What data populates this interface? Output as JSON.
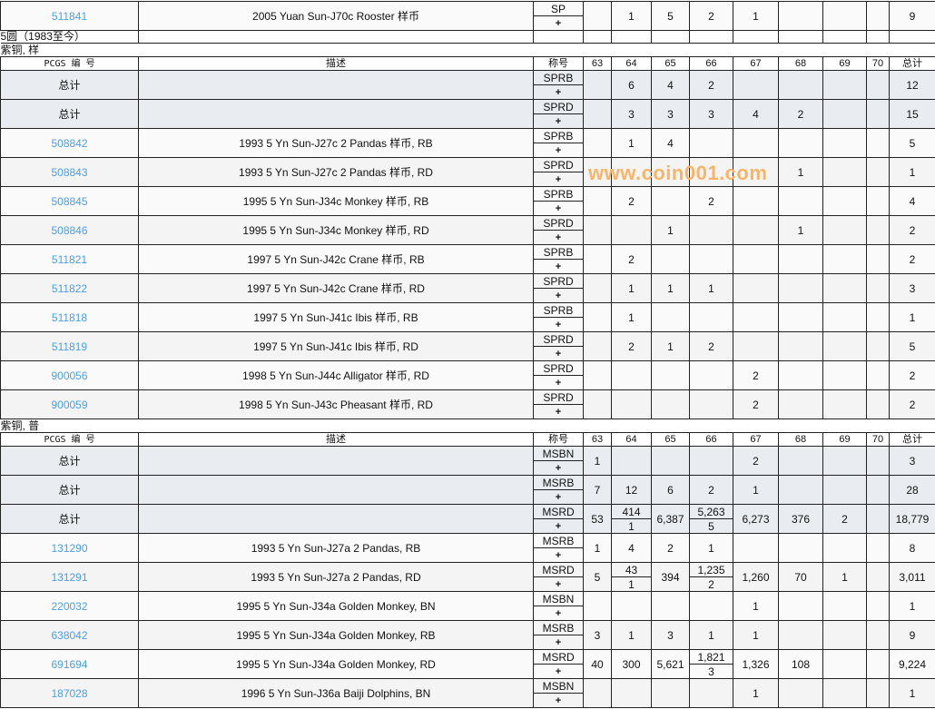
{
  "columns": {
    "pcgs": "PCGS 编 号",
    "desc": "描述",
    "grade": "称号",
    "g63": "63",
    "g64": "64",
    "g65": "65",
    "g66": "66",
    "g67": "67",
    "g68": "68",
    "g69": "69",
    "g70": "70",
    "total": "总计"
  },
  "plus": "+",
  "top_row": {
    "pcgs": "511841",
    "desc": "2005 Yuan Sun-J70c Rooster 样币",
    "grade": "SP",
    "cells": [
      "",
      "1",
      "5",
      "2",
      "1",
      "",
      "",
      ""
    ],
    "total": "9"
  },
  "category": "5圆（1983至今）",
  "sections": [
    {
      "title": "紫铜, 样",
      "rows": [
        {
          "type": "total",
          "pcgs": "总计",
          "desc": "",
          "grade": "SPRB",
          "cells": [
            "",
            "6",
            "4",
            "2",
            "",
            "",
            "",
            ""
          ],
          "total": "12"
        },
        {
          "type": "total",
          "pcgs": "总计",
          "desc": "",
          "grade": "SPRD",
          "cells": [
            "",
            "3",
            "3",
            "3",
            "4",
            "2",
            "",
            ""
          ],
          "total": "15"
        },
        {
          "pcgs": "508842",
          "desc": "1993 5 Yn Sun-J27c 2 Pandas 样币, RB",
          "grade": "SPRB",
          "cells": [
            "",
            "1",
            "4",
            "",
            "",
            "",
            "",
            ""
          ],
          "total": "5"
        },
        {
          "pcgs": "508843",
          "desc": "1993 5 Yn Sun-J27c 2 Pandas 样币, RD",
          "grade": "SPRD",
          "cells": [
            "",
            "",
            "",
            "",
            "",
            "1",
            "",
            ""
          ],
          "total": "1"
        },
        {
          "pcgs": "508845",
          "desc": "1995 5 Yn Sun-J34c Monkey 样币, RB",
          "grade": "SPRB",
          "cells": [
            "",
            "2",
            "",
            "2",
            "",
            "",
            "",
            ""
          ],
          "total": "4"
        },
        {
          "pcgs": "508846",
          "desc": "1995 5 Yn Sun-J34c Monkey 样币, RD",
          "grade": "SPRD",
          "cells": [
            "",
            "",
            "1",
            "",
            "",
            "1",
            "",
            ""
          ],
          "total": "2"
        },
        {
          "pcgs": "511821",
          "desc": "1997 5 Yn Sun-J42c Crane 样币, RB",
          "grade": "SPRB",
          "cells": [
            "",
            "2",
            "",
            "",
            "",
            "",
            "",
            ""
          ],
          "total": "2"
        },
        {
          "pcgs": "511822",
          "desc": "1997 5 Yn Sun-J42c Crane 样币, RD",
          "grade": "SPRD",
          "cells": [
            "",
            "1",
            "1",
            "1",
            "",
            "",
            "",
            ""
          ],
          "total": "3"
        },
        {
          "pcgs": "511818",
          "desc": "1997 5 Yn Sun-J41c Ibis 样币, RB",
          "grade": "SPRB",
          "cells": [
            "",
            "1",
            "",
            "",
            "",
            "",
            "",
            ""
          ],
          "total": "1"
        },
        {
          "pcgs": "511819",
          "desc": "1997 5 Yn Sun-J41c Ibis 样币, RD",
          "grade": "SPRD",
          "cells": [
            "",
            "2",
            "1",
            "2",
            "",
            "",
            "",
            ""
          ],
          "total": "5"
        },
        {
          "pcgs": "900056",
          "desc": "1998 5 Yn Sun-J44c Alligator 样币, RD",
          "grade": "SPRD",
          "cells": [
            "",
            "",
            "",
            "",
            "2",
            "",
            "",
            ""
          ],
          "total": "2"
        },
        {
          "pcgs": "900059",
          "desc": "1998 5 Yn Sun-J43c Pheasant 样币, RD",
          "grade": "SPRD",
          "cells": [
            "",
            "",
            "",
            "",
            "2",
            "",
            "",
            ""
          ],
          "total": "2"
        }
      ]
    },
    {
      "title": "紫铜, 普",
      "rows": [
        {
          "type": "total",
          "pcgs": "总计",
          "desc": "",
          "grade": "MSBN",
          "cells": [
            "1",
            "",
            "",
            "",
            "2",
            "",
            "",
            ""
          ],
          "total": "3"
        },
        {
          "type": "total",
          "pcgs": "总计",
          "desc": "",
          "grade": "MSRB",
          "cells": [
            "7",
            "12",
            "6",
            "2",
            "1",
            "",
            "",
            ""
          ],
          "total": "28"
        },
        {
          "type": "total",
          "pcgs": "总计",
          "desc": "",
          "grade": "MSRD",
          "cells": [
            "53",
            [
              "414",
              "1"
            ],
            "6,387",
            [
              "5,263",
              "5"
            ],
            "6,273",
            "376",
            "2",
            ""
          ],
          "total": "18,779"
        },
        {
          "pcgs": "131290",
          "desc": "1993 5 Yn Sun-J27a 2 Pandas, RB",
          "grade": "MSRB",
          "cells": [
            "1",
            "4",
            "2",
            "1",
            "",
            "",
            "",
            ""
          ],
          "total": "8"
        },
        {
          "pcgs": "131291",
          "desc": "1993 5 Yn Sun-J27a 2 Pandas, RD",
          "grade": "MSRD",
          "cells": [
            "5",
            [
              "43",
              "1"
            ],
            "394",
            [
              "1,235",
              "2"
            ],
            "1,260",
            "70",
            "1",
            ""
          ],
          "total": "3,011"
        },
        {
          "pcgs": "220032",
          "desc": "1995 5 Yn Sun-J34a Golden Monkey, BN",
          "grade": "MSBN",
          "cells": [
            "",
            "",
            "",
            "",
            "1",
            "",
            "",
            ""
          ],
          "total": "1"
        },
        {
          "pcgs": "638042",
          "desc": "1995 5 Yn Sun-J34a Golden Monkey, RB",
          "grade": "MSRB",
          "cells": [
            "3",
            "1",
            "3",
            "1",
            "1",
            "",
            "",
            ""
          ],
          "total": "9"
        },
        {
          "pcgs": "691694",
          "desc": "1995 5 Yn Sun-J34a Golden Monkey, RD",
          "grade": "MSRD",
          "cells": [
            "40",
            "300",
            "5,621",
            [
              "1,821",
              "3"
            ],
            "1,326",
            "108",
            "",
            ""
          ],
          "total": "9,224"
        },
        {
          "pcgs": "187028",
          "desc": "1996 5 Yn Sun-J36a Baiji Dolphins, BN",
          "grade": "MSBN",
          "cells": [
            "",
            "",
            "",
            "",
            "1",
            "",
            "",
            ""
          ],
          "total": "1"
        }
      ]
    }
  ],
  "watermark": "www.coin001.com",
  "colors": {
    "link": "#4a9ee6",
    "total_row_bg": "#e9edf1",
    "watermark": "#f7b56a"
  }
}
